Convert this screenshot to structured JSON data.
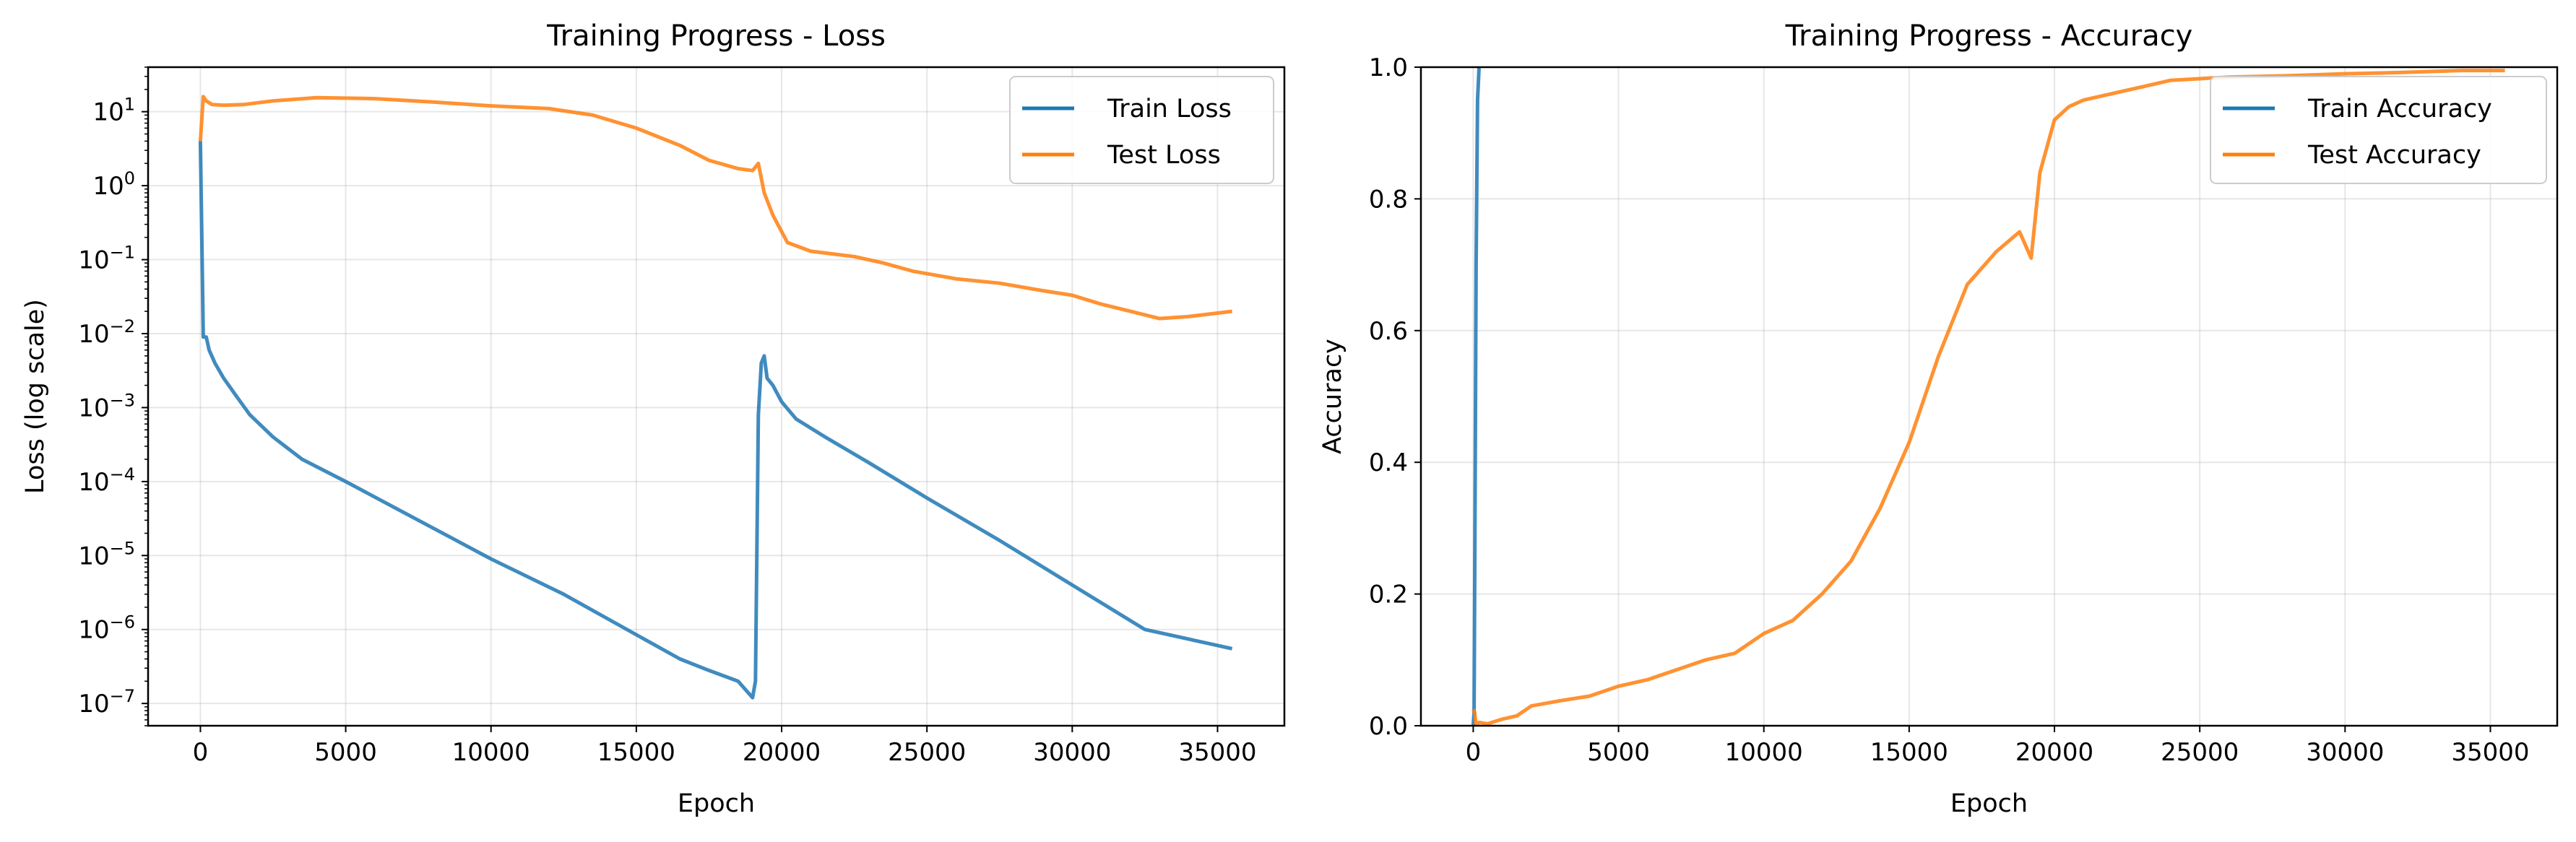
{
  "colors": {
    "train": "#1f77b4",
    "test": "#ff7f0e",
    "grid": "#b0b0b0"
  },
  "chart_data": [
    {
      "type": "line",
      "title": "Training Progress - Loss",
      "xlabel": "Epoch",
      "ylabel": "Loss (log scale)",
      "yscale": "log",
      "xlim": [
        -1800,
        37300
      ],
      "ylim": [
        5e-08,
        40
      ],
      "xticks": [
        0,
        5000,
        10000,
        15000,
        20000,
        25000,
        30000,
        35000
      ],
      "yticks": [
        {
          "base": "10",
          "exp": "1",
          "value": 10
        },
        {
          "base": "10",
          "exp": "0",
          "value": 1
        },
        {
          "base": "10",
          "exp": "−1",
          "value": 0.1
        },
        {
          "base": "10",
          "exp": "−2",
          "value": 0.01
        },
        {
          "base": "10",
          "exp": "−3",
          "value": 0.001
        },
        {
          "base": "10",
          "exp": "−4",
          "value": 0.0001
        },
        {
          "base": "10",
          "exp": "−5",
          "value": 1e-05
        },
        {
          "base": "10",
          "exp": "−6",
          "value": 1e-06
        },
        {
          "base": "10",
          "exp": "−7",
          "value": 1e-07
        }
      ],
      "grid": true,
      "legend_position": "top-right",
      "series": [
        {
          "name": "Train Loss",
          "color_key": "train",
          "x": [
            0,
            100,
            200,
            300,
            500,
            800,
            1200,
            1700,
            2500,
            3500,
            5000,
            7500,
            10000,
            12500,
            15000,
            16500,
            17500,
            18500,
            19000,
            19100,
            19200,
            19300,
            19400,
            19500,
            19700,
            20000,
            20500,
            21500,
            23000,
            25000,
            27500,
            30000,
            32500,
            35500
          ],
          "y": [
            4,
            0.009,
            0.009,
            0.006,
            0.004,
            0.0025,
            0.0015,
            0.0008,
            0.0004,
            0.0002,
            0.0001,
            3e-05,
            9e-06,
            3e-06,
            8.5e-07,
            4e-07,
            2.8e-07,
            2e-07,
            1.2e-07,
            2e-07,
            0.0008,
            0.004,
            0.005,
            0.0025,
            0.002,
            0.0012,
            0.0007,
            0.0004,
            0.00018,
            6e-05,
            1.6e-05,
            4e-06,
            1e-06,
            5.5e-07
          ]
        },
        {
          "name": "Test Loss",
          "color_key": "test",
          "x": [
            0,
            100,
            200,
            400,
            800,
            1500,
            2500,
            4000,
            6000,
            8000,
            10000,
            12000,
            13500,
            15000,
            16500,
            17500,
            18500,
            19000,
            19200,
            19400,
            19700,
            20200,
            21000,
            22500,
            23500,
            24500,
            26000,
            27500,
            29000,
            30000,
            31000,
            32000,
            33000,
            34000,
            35500
          ],
          "y": [
            4,
            16,
            14,
            12.5,
            12.2,
            12.5,
            14,
            15.5,
            15,
            13.5,
            12,
            11,
            9,
            6,
            3.5,
            2.2,
            1.7,
            1.6,
            2,
            0.8,
            0.4,
            0.17,
            0.13,
            0.11,
            0.09,
            0.07,
            0.055,
            0.048,
            0.038,
            0.033,
            0.025,
            0.02,
            0.016,
            0.017,
            0.02
          ]
        }
      ]
    },
    {
      "type": "line",
      "title": "Training Progress - Accuracy",
      "xlabel": "Epoch",
      "ylabel": "Accuracy",
      "xlim": [
        -1800,
        37300
      ],
      "ylim": [
        0,
        1.0
      ],
      "xticks": [
        0,
        5000,
        10000,
        15000,
        20000,
        25000,
        30000,
        35000
      ],
      "yticks": [
        "0.0",
        "0.2",
        "0.4",
        "0.6",
        "0.8",
        "1.0"
      ],
      "grid": true,
      "legend_position": "top-right",
      "series": [
        {
          "name": "Train Accuracy",
          "color_key": "train",
          "x": [
            0,
            30,
            60,
            100,
            150,
            200
          ],
          "y": [
            0.0,
            0.02,
            0.3,
            0.7,
            0.95,
            1.0
          ]
        },
        {
          "name": "Test Accuracy",
          "color_key": "test",
          "x": [
            0,
            50,
            100,
            200,
            500,
            1000,
            1500,
            2000,
            3000,
            4000,
            5000,
            6000,
            7000,
            8000,
            9000,
            10000,
            11000,
            12000,
            13000,
            14000,
            15000,
            16000,
            17000,
            18000,
            18800,
            19200,
            19500,
            20000,
            20500,
            21000,
            22000,
            23000,
            24000,
            26000,
            28000,
            30000,
            32000,
            34000,
            35500
          ],
          "y": [
            0.025,
            0.02,
            0.0,
            0.005,
            0.003,
            0.01,
            0.015,
            0.03,
            0.038,
            0.045,
            0.06,
            0.07,
            0.085,
            0.1,
            0.11,
            0.14,
            0.16,
            0.2,
            0.25,
            0.33,
            0.43,
            0.56,
            0.67,
            0.72,
            0.75,
            0.71,
            0.84,
            0.92,
            0.94,
            0.95,
            0.96,
            0.97,
            0.98,
            0.985,
            0.987,
            0.99,
            0.992,
            0.995,
            0.995
          ]
        }
      ]
    }
  ]
}
